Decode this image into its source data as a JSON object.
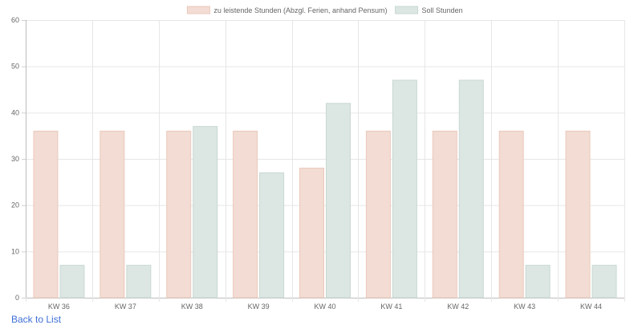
{
  "chart_data": {
    "type": "bar",
    "categories": [
      "KW 36",
      "KW 37",
      "KW 38",
      "KW 39",
      "KW 40",
      "KW 41",
      "KW 42",
      "KW 43",
      "KW 44"
    ],
    "series": [
      {
        "name": "zu leistende Stunden (Abzgl. Ferien, anhand Pensum)",
        "values": [
          36,
          36,
          36,
          36,
          28,
          36,
          36,
          36,
          36
        ],
        "color": "#f2dcd4",
        "border": "#ecc9bc"
      },
      {
        "name": "Soll Stunden",
        "values": [
          7,
          7,
          37,
          27,
          42,
          47,
          47,
          7,
          7
        ],
        "color": "#dce6e2",
        "border": "#c9d8d2"
      }
    ],
    "ylim": [
      0,
      60
    ],
    "yticks": [
      0,
      10,
      20,
      30,
      40,
      50,
      60
    ],
    "grid": true,
    "legend_position": "top"
  },
  "footer": {
    "back_link": "Back to List"
  }
}
